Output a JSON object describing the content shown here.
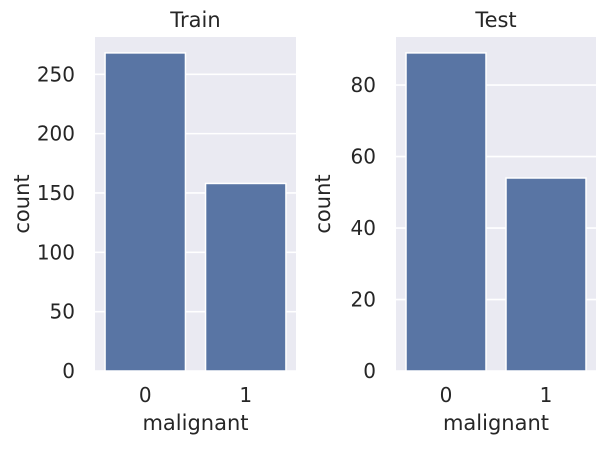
{
  "chart_data": [
    {
      "type": "bar",
      "title": "Train",
      "xlabel": "malignant",
      "ylabel": "count",
      "categories": [
        "0",
        "1"
      ],
      "values": [
        268,
        158
      ],
      "ylim": [
        0,
        281.4
      ],
      "yticks": [
        0,
        50,
        100,
        150,
        200,
        250
      ],
      "grid": true,
      "color": "#5975a4",
      "background": "#eaeaf2"
    },
    {
      "type": "bar",
      "title": "Test",
      "xlabel": "malignant",
      "ylabel": "count",
      "categories": [
        "0",
        "1"
      ],
      "values": [
        89,
        54
      ],
      "ylim": [
        0,
        93.45
      ],
      "yticks": [
        0,
        20,
        40,
        60,
        80
      ],
      "grid": true,
      "color": "#5975a4",
      "background": "#eaeaf2"
    }
  ]
}
